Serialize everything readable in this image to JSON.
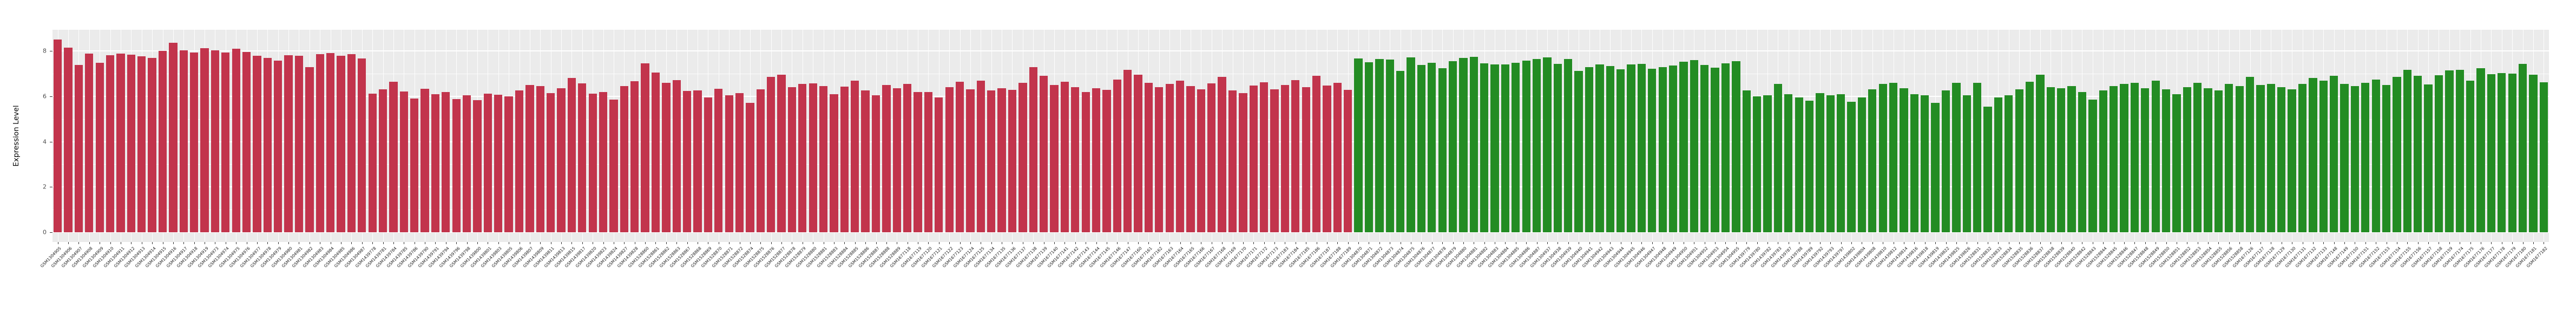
{
  "style": {
    "panel_bg": "#EBEBEB",
    "grid_color": "#FFFFFF",
    "tick_label_color": "#4D4D4D",
    "red": "#C2344C",
    "green": "#238C23"
  },
  "chart_data": {
    "type": "bar",
    "title": "",
    "xlabel": "",
    "ylabel": "Expression Level",
    "y_ticks": [
      0,
      2,
      4,
      6,
      8
    ],
    "y_minor_ticks": [
      1,
      3,
      5,
      7
    ],
    "ylim": [
      -0.45,
      8.92
    ],
    "grid": true,
    "legend": "none",
    "groups": [
      {
        "name": "group-red",
        "color": "#C2344C",
        "count": 124
      },
      {
        "name": "group-green",
        "color": "#238C23",
        "count": 114
      }
    ],
    "categories": [
      "GSM1304905",
      "GSM1304906",
      "GSM1304907",
      "GSM1304908",
      "GSM1304909",
      "GSM1304910",
      "GSM1304911",
      "GSM1304912",
      "GSM1304913",
      "GSM1304914",
      "GSM1304915",
      "GSM1304916",
      "GSM1304917",
      "GSM1304918",
      "GSM1304919",
      "GSM1304973",
      "GSM1304974",
      "GSM1304975",
      "GSM1304976",
      "GSM1304977",
      "GSM1304978",
      "GSM1304979",
      "GSM1304980",
      "GSM1304981",
      "GSM1304982",
      "GSM1304983",
      "GSM1304984",
      "GSM1304985",
      "GSM1304986",
      "GSM1304987",
      "GSM1439778",
      "GSM1439781",
      "GSM1439784",
      "GSM1439785",
      "GSM1439786",
      "GSM1439790",
      "GSM1439791",
      "GSM1439794",
      "GSM1439796",
      "GSM1439798",
      "GSM1439800",
      "GSM1439801",
      "GSM1439803",
      "GSM1439805",
      "GSM1439806",
      "GSM1439807",
      "GSM1439809",
      "GSM1439811",
      "GSM1439813",
      "GSM1439815",
      "GSM1439817",
      "GSM1439820",
      "GSM1439823",
      "GSM1439824",
      "GSM1439827",
      "GSM1439828",
      "GSM1528860",
      "GSM1528861",
      "GSM1528862",
      "GSM1528863",
      "GSM1528867",
      "GSM1528868",
      "GSM1528869",
      "GSM1528870",
      "GSM1528871",
      "GSM1528872",
      "GSM1528874",
      "GSM1528875",
      "GSM1528876",
      "GSM1528877",
      "GSM1528878",
      "GSM1528879",
      "GSM1528880",
      "GSM1528881",
      "GSM1528883",
      "GSM1528884",
      "GSM1528885",
      "GSM1528886",
      "GSM1528887",
      "GSM1528888",
      "GSM1528889",
      "GSM1677118",
      "GSM1677119",
      "GSM1677120",
      "GSM1677121",
      "GSM1677122",
      "GSM1677123",
      "GSM1677124",
      "GSM1677125",
      "GSM1677134",
      "GSM1677135",
      "GSM1677136",
      "GSM1677137",
      "GSM1677138",
      "GSM1677139",
      "GSM1677140",
      "GSM1677141",
      "GSM1677142",
      "GSM1677143",
      "GSM1677144",
      "GSM1677145",
      "GSM1677146",
      "GSM1677147",
      "GSM1677160",
      "GSM1677161",
      "GSM1677162",
      "GSM1677163",
      "GSM1677164",
      "GSM1677165",
      "GSM1677166",
      "GSM1677167",
      "GSM1677168",
      "GSM1677169",
      "GSM1677170",
      "GSM1677171",
      "GSM1677172",
      "GSM1677173",
      "GSM1677183",
      "GSM1677184",
      "GSM1677185",
      "GSM1677186",
      "GSM1677187",
      "GSM1677188",
      "GSM1677189",
      "GSM1304870",
      "GSM1304871",
      "GSM1304872",
      "GSM1304873",
      "GSM1304874",
      "GSM1304875",
      "GSM1304876",
      "GSM1304877",
      "GSM1304878",
      "GSM1304879",
      "GSM1304880",
      "GSM1304881",
      "GSM1304882",
      "GSM1304883",
      "GSM1304884",
      "GSM1304885",
      "GSM1304886",
      "GSM1304887",
      "GSM1304937",
      "GSM1304938",
      "GSM1304939",
      "GSM1304940",
      "GSM1304941",
      "GSM1304942",
      "GSM1304943",
      "GSM1304944",
      "GSM1304945",
      "GSM1304946",
      "GSM1304947",
      "GSM1304948",
      "GSM1304949",
      "GSM1304950",
      "GSM1304951",
      "GSM1304952",
      "GSM1304953",
      "GSM1304954",
      "GSM1304955",
      "GSM1439779",
      "GSM1439780",
      "GSM1439782",
      "GSM1439783",
      "GSM1439787",
      "GSM1439788",
      "GSM1439789",
      "GSM1439792",
      "GSM1439793",
      "GSM1439797",
      "GSM1439802",
      "GSM1439804",
      "GSM1439808",
      "GSM1439810",
      "GSM1439812",
      "GSM1439814",
      "GSM1439816",
      "GSM1439818",
      "GSM1439819",
      "GSM1439822",
      "GSM1439825",
      "GSM1439826",
      "GSM1528831",
      "GSM1528832",
      "GSM1528833",
      "GSM1528834",
      "GSM1528835",
      "GSM1528836",
      "GSM1528837",
      "GSM1528838",
      "GSM1528839",
      "GSM1528840",
      "GSM1528842",
      "GSM1528843",
      "GSM1528844",
      "GSM1528845",
      "GSM1528846",
      "GSM1528847",
      "GSM1528848",
      "GSM1528849",
      "GSM1528850",
      "GSM1528851",
      "GSM1528852",
      "GSM1528853",
      "GSM1528854",
      "GSM1528855",
      "GSM1528856",
      "GSM1528858",
      "GSM1677126",
      "GSM1677127",
      "GSM1677128",
      "GSM1677129",
      "GSM1677130",
      "GSM1677131",
      "GSM1677132",
      "GSM1677133",
      "GSM1677148",
      "GSM1677149",
      "GSM1677150",
      "GSM1677151",
      "GSM1677152",
      "GSM1677153",
      "GSM1677154",
      "GSM1677155",
      "GSM1677156",
      "GSM1677157",
      "GSM1677158",
      "GSM1677159",
      "GSM1677174",
      "GSM1677175",
      "GSM1677176",
      "GSM1677177",
      "GSM1677178",
      "GSM1677179",
      "GSM1677180",
      "GSM1677181",
      "GSM1677182"
    ],
    "values": [
      8.5,
      8.15,
      7.38,
      7.88,
      7.48,
      7.82,
      7.89,
      7.85,
      7.76,
      7.7,
      8.01,
      8.36,
      8.04,
      7.93,
      8.12,
      8.02,
      7.93,
      8.1,
      7.97,
      7.8,
      7.7,
      7.57,
      7.81,
      7.8,
      7.3,
      7.86,
      7.9,
      7.8,
      7.87,
      7.68,
      6.12,
      6.32,
      6.65,
      6.21,
      5.9,
      6.34,
      6.1,
      6.2,
      5.87,
      6.05,
      5.83,
      6.12,
      6.08,
      6.0,
      6.27,
      6.5,
      6.46,
      6.15,
      6.35,
      6.82,
      6.56,
      6.12,
      6.18,
      5.85,
      6.45,
      6.67,
      7.45,
      7.05,
      6.6,
      6.72,
      6.23,
      6.27,
      5.95,
      6.33,
      6.05,
      6.15,
      5.72,
      6.3,
      6.85,
      6.95,
      6.4,
      6.55,
      6.58,
      6.45,
      6.1,
      6.42,
      6.7,
      6.25,
      6.05,
      6.5,
      6.35,
      6.55,
      6.2,
      6.18,
      5.95,
      6.4,
      6.65,
      6.3,
      6.68,
      6.25,
      6.35,
      6.28,
      6.6,
      7.3,
      6.9,
      6.5,
      6.65,
      6.4,
      6.2,
      6.35,
      6.28,
      6.75,
      7.18,
      6.95,
      6.6,
      6.4,
      6.55,
      6.7,
      6.45,
      6.3,
      6.58,
      6.85,
      6.25,
      6.15,
      6.48,
      6.62,
      6.3,
      6.5,
      6.72,
      6.4,
      6.9,
      6.48,
      6.6,
      6.28,
      7.67,
      7.5,
      7.64,
      7.63,
      7.12,
      7.71,
      7.38,
      7.47,
      7.23,
      7.56,
      7.7,
      7.74,
      7.45,
      7.4,
      7.42,
      7.48,
      7.58,
      7.66,
      7.72,
      7.44,
      7.64,
      7.12,
      7.29,
      7.42,
      7.33,
      7.19,
      7.4,
      7.44,
      7.21,
      7.28,
      7.35,
      7.52,
      7.6,
      7.38,
      7.26,
      7.45,
      7.55,
      6.25,
      6.0,
      6.05,
      6.55,
      6.1,
      5.95,
      5.8,
      6.15,
      6.05,
      6.1,
      5.75,
      5.95,
      6.3,
      6.55,
      6.6,
      6.35,
      6.1,
      6.05,
      5.7,
      6.25,
      6.6,
      6.05,
      6.6,
      5.55,
      5.95,
      6.05,
      6.3,
      6.65,
      6.95,
      6.4,
      6.35,
      6.45,
      6.2,
      5.85,
      6.25,
      6.45,
      6.55,
      6.6,
      6.35,
      6.7,
      6.3,
      6.1,
      6.4,
      6.6,
      6.35,
      6.25,
      6.55,
      6.45,
      6.85,
      6.5,
      6.55,
      6.4,
      6.3,
      6.55,
      6.8,
      6.7,
      6.9,
      6.55,
      6.45,
      6.6,
      6.75,
      6.5,
      6.85,
      7.16,
      6.9,
      6.52,
      6.93,
      7.14,
      7.16,
      6.68,
      7.25,
      6.97,
      7.02,
      7.0,
      7.43,
      6.95,
      6.61
    ]
  }
}
